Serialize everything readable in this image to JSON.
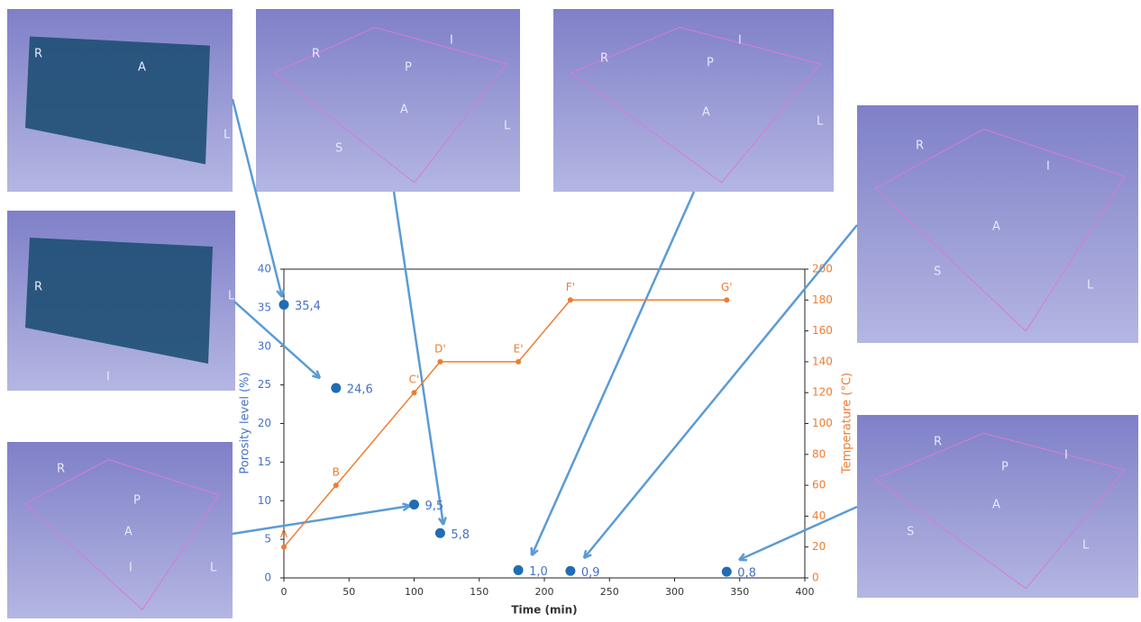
{
  "chart_data": {
    "type": "scatter-line",
    "xlabel": "Time (min)",
    "ylabel": "Porosity level (%)",
    "y2label": "Temperature (°C)",
    "xlim": [
      0,
      400
    ],
    "xticks": [
      0,
      50,
      100,
      150,
      200,
      250,
      300,
      350,
      400
    ],
    "ylim": [
      0,
      40
    ],
    "yticks": [
      0,
      5,
      10,
      15,
      20,
      25,
      30,
      35,
      40
    ],
    "y2lim": [
      0,
      200
    ],
    "y2ticks": [
      0,
      20,
      40,
      60,
      80,
      100,
      120,
      140,
      160,
      180,
      200
    ],
    "series": [
      {
        "name": "Porosity level",
        "type": "scatter",
        "color": "#1f6db3",
        "x": [
          0,
          40,
          100,
          120,
          180,
          220,
          340
        ],
        "values": [
          35.4,
          24.6,
          9.5,
          5.8,
          1.0,
          0.9,
          0.8
        ],
        "value_labels": [
          "35,4",
          "24,6",
          "9,5",
          "5,8",
          "1,0",
          "0,9",
          "0,8"
        ]
      },
      {
        "name": "Temperature",
        "type": "line",
        "axis": "y2",
        "color": "#ed7d31",
        "x": [
          0,
          40,
          100,
          120,
          180,
          220,
          340
        ],
        "values": [
          20,
          60,
          120,
          140,
          140,
          180,
          180
        ],
        "point_labels": [
          "A",
          "B",
          "C'",
          "D'",
          "E'",
          "F'",
          "G'"
        ]
      }
    ]
  },
  "panels": [
    {
      "labels": [
        "R",
        "A",
        "L"
      ]
    },
    {
      "labels": [
        "R",
        "I",
        "P",
        "A",
        "L",
        "S"
      ]
    },
    {
      "labels": [
        "R",
        "I",
        "P",
        "A",
        "L"
      ]
    },
    {
      "labels": [
        "R",
        "I",
        "A",
        "S",
        "L"
      ]
    },
    {
      "labels": [
        "R",
        "L",
        "I"
      ]
    },
    {
      "labels": [
        "R",
        "P",
        "A",
        "L",
        "I"
      ]
    },
    {
      "labels": [
        "R",
        "I",
        "P",
        "A",
        "S",
        "L"
      ]
    }
  ]
}
